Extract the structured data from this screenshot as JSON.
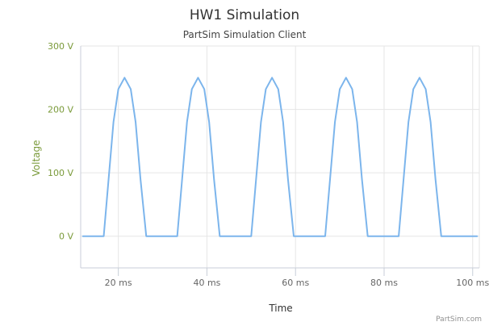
{
  "chart_data": {
    "type": "line",
    "title": "HW1 Simulation",
    "subtitle": "PartSim Simulation Client",
    "xlabel": "Time",
    "ylabel": "Voltage",
    "x_unit": "ms",
    "y_unit": "V",
    "xlim": [
      11.5,
      101.5
    ],
    "ylim": [
      -50,
      300
    ],
    "x_ticks": [
      20,
      40,
      60,
      80,
      100
    ],
    "x_tick_labels": [
      "20 ms",
      "40 ms",
      "60 ms",
      "80 ms",
      "100 ms"
    ],
    "y_ticks": [
      0,
      100,
      200,
      300
    ],
    "y_tick_labels": [
      "0 V",
      "100 V",
      "200 V",
      "300 V"
    ],
    "grid": true,
    "legend": "none",
    "credit": "PartSim.com",
    "series": [
      {
        "color": "#7cb5ec",
        "x": [
          12,
          16.7,
          17.8,
          18.9,
          20,
          21.4,
          22.8,
          23.9,
          25,
          26.3,
          33.3,
          34.4,
          35.5,
          36.6,
          38,
          39.4,
          40.5,
          41.6,
          42.9,
          50,
          51.1,
          52.2,
          53.3,
          54.7,
          56.1,
          57.2,
          58.3,
          59.6,
          66.7,
          67.8,
          68.9,
          70,
          71.4,
          72.8,
          73.9,
          75,
          76.3,
          83.3,
          84.4,
          85.5,
          86.6,
          88,
          89.4,
          90.5,
          91.6,
          92.9,
          101
        ],
        "y": [
          0,
          0,
          90,
          180,
          232,
          250,
          232,
          180,
          90,
          0,
          0,
          90,
          180,
          232,
          250,
          232,
          180,
          90,
          0,
          0,
          90,
          180,
          232,
          250,
          232,
          180,
          90,
          0,
          0,
          90,
          180,
          232,
          250,
          232,
          180,
          90,
          0,
          0,
          90,
          180,
          232,
          250,
          232,
          180,
          90,
          0,
          0
        ]
      }
    ]
  }
}
